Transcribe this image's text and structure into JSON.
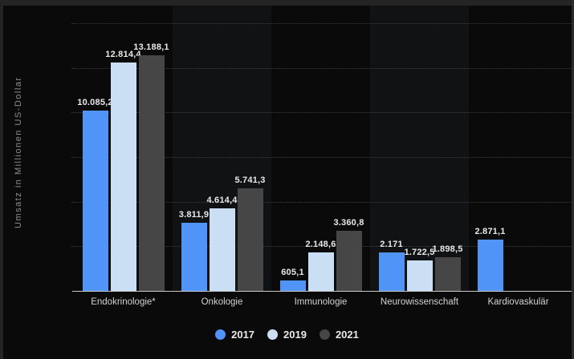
{
  "chart_data": {
    "type": "bar",
    "title": "",
    "ylabel": "Umsatz in Millionen US-Dollar",
    "xlabel": "",
    "ylim": [
      0,
      15000
    ],
    "gridline_step": 2500,
    "grid": "dotted-horizontal",
    "legend_position": "bottom-center",
    "categories": [
      "Endokrinologie*",
      "Onkologie",
      "Immunologie",
      "Neurowissenschaft",
      "Kardiovaskulär"
    ],
    "series": [
      {
        "name": "2017",
        "color": "#4f94f6",
        "values": [
          10085.2,
          3811.9,
          605.1,
          2171,
          2871.1
        ],
        "labels": [
          "10.085,2",
          "3.811,9",
          "605,1",
          "2.171",
          "2.871,1"
        ]
      },
      {
        "name": "2019",
        "color": "#cbdff4",
        "values": [
          12814.4,
          4614.4,
          2148.6,
          1722.5,
          null
        ],
        "labels": [
          "12.814,4",
          "4.614,4",
          "2.148,6",
          "1.722,5",
          null
        ]
      },
      {
        "name": "2021",
        "color": "#464646",
        "values": [
          13188.1,
          5741.3,
          3360.8,
          1898.5,
          null
        ],
        "labels": [
          "13.188,1",
          "5.741,3",
          "3.360,8",
          "1.898,5",
          null
        ]
      }
    ],
    "colors": {
      "background": "#0a0a0b",
      "band_alt": "#111214",
      "frame": "#242424",
      "gridline": "#3f3f3f",
      "axis_line": "#c9c9c9",
      "value_text": "#e9e9e9",
      "category_text": "#d2d2d2",
      "axis_title_text": "#8d8d8d"
    }
  }
}
